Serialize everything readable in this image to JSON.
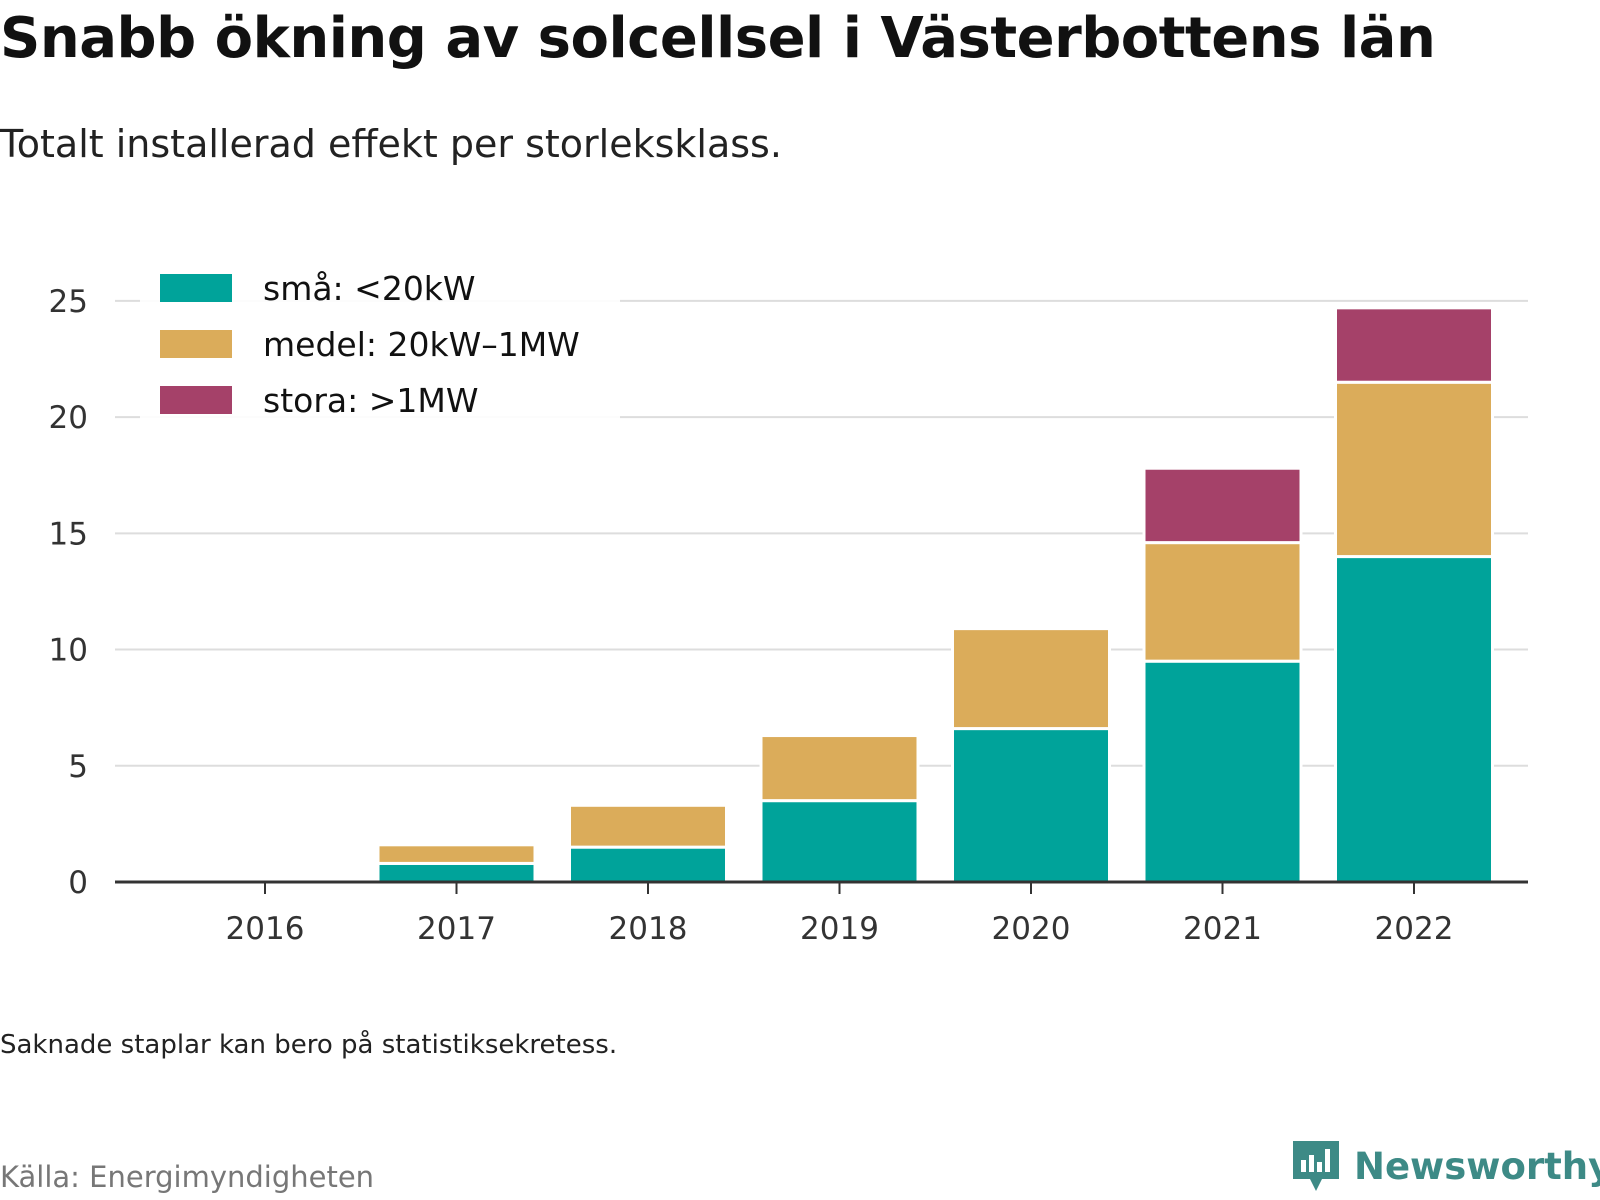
{
  "title": "Snabb ökning av solcellsel i Västerbottens län",
  "subtitle": "Totalt installerad effekt per storleksklass.",
  "note": "Saknade staplar kan bero på statistiksekretess.",
  "source": "Källa: Energimyndigheten",
  "brand": {
    "name": "Newsworthy",
    "icon": "newsworthy-logo-icon",
    "color": "#3d8a86"
  },
  "chart_data": {
    "type": "bar",
    "stacked": true,
    "categories": [
      "2016",
      "2017",
      "2018",
      "2019",
      "2020",
      "2021",
      "2022"
    ],
    "series": [
      {
        "name": "små: <20kW",
        "color": "#00a39a",
        "values": [
          0,
          0.8,
          1.5,
          3.5,
          6.6,
          9.5,
          14.0
        ]
      },
      {
        "name": "medel: 20kW–1MW",
        "color": "#dbac5a",
        "values": [
          0,
          0.8,
          1.8,
          2.8,
          4.3,
          5.1,
          7.5
        ]
      },
      {
        "name": "stora: >1MW",
        "color": "#a54169",
        "values": [
          0,
          0,
          0,
          0,
          0,
          3.2,
          3.2
        ]
      }
    ],
    "yticks": [
      "0",
      "5",
      "10",
      "15",
      "20",
      "25"
    ],
    "ylim": [
      0,
      25
    ],
    "grid": true,
    "legend": "top-left",
    "xlabel": "",
    "ylabel": ""
  }
}
